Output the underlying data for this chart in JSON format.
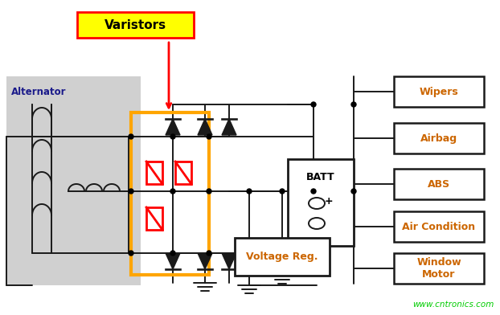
{
  "bg_color": "#ffffff",
  "watermark": "www.cntronics.com",
  "watermark_color": "#00cc00",
  "label_varistors": "Varistors",
  "label_alternator": "Alternator",
  "label_batt": "BATT",
  "label_voltage_reg": "Voltage Reg.",
  "load_boxes": [
    "Wipers",
    "Airbag",
    "ABS",
    "Air Condition",
    "Window\nMotor"
  ],
  "varistor_box_color": "#FFA500",
  "varistor_label_bg": "#FFFF00",
  "varistor_label_border": "#FF0000",
  "varistor_color": "#FF0000",
  "line_color": "#1a1a1a",
  "alt_bg": "#d0d0d0",
  "font_color": "#000000",
  "load_font_color": "#cc6600",
  "alt_font_color": "#1a1a8a"
}
